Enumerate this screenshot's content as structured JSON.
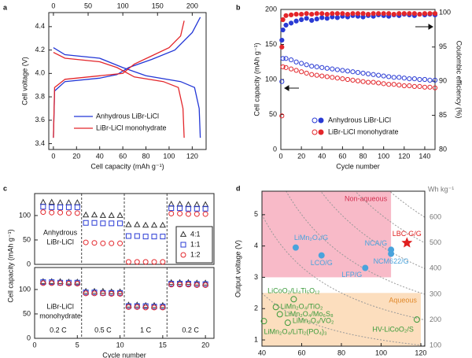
{
  "chart_data": [
    {
      "panel": "a",
      "type": "line",
      "xlabel": "Cell capacity (mAh g⁻¹)",
      "ylabel": "Cell voltage (V)",
      "xlim": [
        -4,
        132
      ],
      "xticks": [
        0,
        20,
        40,
        60,
        80,
        100,
        120
      ],
      "x2lim": [
        -6.7,
        220
      ],
      "x2ticks": [
        0,
        50,
        100,
        150,
        200
      ],
      "ylim": [
        3.35,
        4.52
      ],
      "yticks": [
        3.4,
        3.6,
        3.8,
        {
          "value": 4,
          "label": "4.0"
        },
        4.2,
        4.4
      ],
      "legend": "lower right",
      "series": [
        {
          "name": "Anhydrous LiBr-LiCl",
          "color": "#2236d6",
          "x": [
            0,
            1,
            10,
            40,
            55,
            65,
            85,
            105,
            120,
            127,
            null,
            0,
            10,
            40,
            60,
            80,
            110,
            122,
            126,
            127
          ],
          "values": [
            3.45,
            3.85,
            3.93,
            3.96,
            3.99,
            4.05,
            4.12,
            4.2,
            4.35,
            4.48,
            null,
            4.22,
            4.16,
            4.13,
            4.05,
            3.98,
            3.93,
            3.88,
            3.7,
            3.45
          ]
        },
        {
          "name": "LiBr-LiCl monohydrate",
          "color": "#e3262b",
          "x": [
            0,
            1,
            10,
            40,
            60,
            70,
            85,
            100,
            110,
            113,
            null,
            0,
            10,
            40,
            55,
            70,
            95,
            108,
            112,
            113
          ],
          "values": [
            3.45,
            3.88,
            3.95,
            3.98,
            4.0,
            4.08,
            4.15,
            4.22,
            4.32,
            4.45,
            null,
            4.18,
            4.13,
            4.1,
            4.05,
            3.97,
            3.93,
            3.88,
            3.7,
            3.45
          ]
        }
      ]
    },
    {
      "panel": "b",
      "type": "scatter",
      "xlabel": "Cycle number",
      "ylabel": "Cell capacity (mAh g⁻¹)",
      "y2label": "Coulombic efficiency (%)",
      "xlim": [
        0,
        150
      ],
      "xticks": [
        0,
        20,
        40,
        60,
        80,
        100,
        120,
        140
      ],
      "ylim": [
        0,
        200
      ],
      "yticks": [
        0,
        50,
        100,
        150,
        200
      ],
      "y2lim": [
        80,
        100.5
      ],
      "y2ticks": [
        80,
        85,
        90,
        95,
        100
      ],
      "legend": "lower right",
      "x": [
        1,
        2,
        5,
        10,
        15,
        20,
        25,
        30,
        35,
        40,
        45,
        50,
        55,
        60,
        65,
        70,
        75,
        80,
        85,
        90,
        95,
        100,
        105,
        110,
        115,
        120,
        125,
        130,
        135,
        140,
        145,
        150
      ],
      "series": [
        {
          "name": "Anhydrous LiBr-LiCl",
          "color": "#2a3bd4",
          "marker": "circle",
          "filled": false,
          "values": [
            97,
            130,
            130,
            128,
            125,
            123,
            121,
            119,
            118,
            117,
            116,
            115,
            114,
            113,
            112,
            111,
            110,
            109,
            108,
            107,
            106,
            105,
            104,
            103,
            103,
            102,
            101,
            101,
            100,
            100,
            99,
            99
          ]
        },
        {
          "name": "LiBr-LiCl monohydrate",
          "color": "#e3262b",
          "marker": "circle",
          "filled": false,
          "values": [
            48,
            118,
            117,
            115,
            113,
            111,
            109,
            107,
            106,
            105,
            104,
            103,
            102,
            101,
            100,
            99,
            98,
            97,
            96,
            96,
            95,
            94,
            93,
            93,
            92,
            91,
            91,
            90,
            90,
            89,
            89,
            88
          ]
        },
        {
          "color": "#2a3bd4",
          "marker": "circle",
          "filled": true,
          "axis": "y2",
          "values": [
            96,
            97.5,
            98.2,
            98.5,
            98.8,
            99,
            99.2,
            98.9,
            99.1,
            99.3,
            99.2,
            99.4,
            99.3,
            99.5,
            99.4,
            99.6,
            99.5,
            99.4,
            99.6,
            99.5,
            99.7,
            99.6,
            99.5,
            99.7,
            99.6,
            99.8,
            99.7,
            99.6,
            99.8,
            99.7,
            99.8,
            99.7
          ]
        },
        {
          "color": "#e3262b",
          "marker": "circle",
          "filled": true,
          "axis": "y2",
          "values": [
            95,
            99,
            99.6,
            99.7,
            99.8,
            99.8,
            99.9,
            99.8,
            99.9,
            99.9,
            99.8,
            99.9,
            99.9,
            99.9,
            99.8,
            99.9,
            99.9,
            99.9,
            99.8,
            99.9,
            99.9,
            99.9,
            99.9,
            99.8,
            99.9,
            99.9,
            99.9,
            99.9,
            99.8,
            99.9,
            99.9,
            99.9
          ]
        }
      ]
    },
    {
      "panel": "c",
      "type": "scatter",
      "ylabel": "Cell capacity (mAh g⁻¹)",
      "xlim": [
        0,
        21
      ],
      "ylim": [
        0,
        145
      ],
      "yticks": [
        0,
        50,
        100
      ],
      "dividers": [
        5.5,
        10.5,
        15.5
      ],
      "annotation": [
        "Anhydrous",
        "LiBr-LiCl"
      ],
      "legend": "lower right",
      "x": [
        1,
        2,
        3,
        4,
        5,
        6,
        7,
        8,
        9,
        10,
        11,
        12,
        13,
        14,
        15,
        16,
        17,
        18,
        19,
        20
      ],
      "series": [
        {
          "name": "4:1",
          "color": "#333333",
          "marker": "triangle",
          "filled": false,
          "values": [
            127,
            127,
            126,
            126,
            126,
            101,
            101,
            100,
            100,
            100,
            81,
            81,
            80,
            80,
            80,
            123,
            123,
            122,
            122,
            122
          ]
        },
        {
          "name": "1:1",
          "color": "#2a3bd4",
          "marker": "square",
          "filled": false,
          "values": [
            118,
            117,
            117,
            117,
            117,
            85,
            85,
            84,
            84,
            84,
            58,
            58,
            57,
            57,
            57,
            115,
            115,
            114,
            114,
            114
          ]
        },
        {
          "name": "1:2",
          "color": "#e3262b",
          "marker": "circle",
          "filled": false,
          "values": [
            107,
            106,
            106,
            105,
            105,
            45,
            44,
            43,
            43,
            43,
            5,
            5,
            5,
            5,
            5,
            104,
            104,
            103,
            103,
            103
          ]
        }
      ]
    },
    {
      "type": "scatter",
      "xlabel": "Cycle number",
      "xlim": [
        0,
        21
      ],
      "xticks": [
        0,
        5,
        10,
        15,
        20
      ],
      "ylim": [
        0,
        145
      ],
      "yticks": [
        0,
        50,
        100
      ],
      "dividers": [
        5.5,
        10.5,
        15.5
      ],
      "annotation": [
        "LiBr-LiCl",
        "monohydrate"
      ],
      "rate_labels": [
        "0.2 C",
        "0.5 C",
        "1 C",
        "0.2 C"
      ],
      "x": [
        1,
        2,
        3,
        4,
        5,
        6,
        7,
        8,
        9,
        10,
        11,
        12,
        13,
        14,
        15,
        16,
        17,
        18,
        19,
        20
      ],
      "series": [
        {
          "color": "#333333",
          "marker": "triangle",
          "filled": false,
          "values": [
            116,
            116,
            116,
            115,
            115,
            96,
            96,
            96,
            95,
            95,
            68,
            68,
            67,
            67,
            67,
            114,
            114,
            114,
            113,
            113
          ]
        },
        {
          "color": "#2a3bd4",
          "marker": "square",
          "filled": false,
          "values": [
            115,
            115,
            114,
            114,
            114,
            94,
            94,
            93,
            93,
            93,
            66,
            66,
            66,
            65,
            65,
            112,
            112,
            112,
            111,
            111
          ]
        },
        {
          "color": "#e3262b",
          "marker": "circle",
          "filled": false,
          "values": [
            113,
            113,
            113,
            112,
            112,
            92,
            92,
            92,
            91,
            91,
            64,
            64,
            63,
            63,
            63,
            110,
            110,
            110,
            109,
            109
          ]
        }
      ]
    },
    {
      "panel": "d",
      "type": "scatter",
      "xlabel": "Total electrode capacity (mAh g⁻¹)",
      "ylabel": "Output voltage (V)",
      "xlim": [
        40,
        122
      ],
      "xticks": [
        40,
        60,
        80,
        100,
        120
      ],
      "ylim": [
        0.8,
        5.75
      ],
      "yticks": [
        1,
        2,
        3,
        4,
        5
      ],
      "regions": [
        {
          "label": "Non-aqueous",
          "color": "#f5a3b5",
          "label_color": "#d12f4f",
          "xlim": [
            40,
            105
          ],
          "ylim": [
            3,
            5.75
          ]
        },
        {
          "label": "Aqueous",
          "color": "#fbd3a8",
          "label_color": "#e0882a",
          "xlim": [
            40,
            120
          ],
          "ylim": [
            0.8,
            2.5
          ]
        }
      ],
      "contours": {
        "label": "Wh kg⁻¹",
        "values": [
          100,
          200,
          300,
          400,
          500,
          600
        ]
      },
      "series": [
        {
          "color": "#4aa3dc",
          "marker": "circle",
          "filled": true,
          "labels": [
            "LiMn₂O₄/G",
            "NCA/G",
            "LCO/G",
            "NCM622/G",
            "LFP/G"
          ],
          "x": [
            57,
            105,
            70,
            105,
            92
          ],
          "values": [
            3.95,
            3.88,
            3.7,
            3.75,
            3.3
          ]
        },
        {
          "color": "#3a9a3a",
          "marker": "circle",
          "filled": false,
          "labels": [
            "LiCoO₂/Li₄Ti₅O₁₂",
            "LiMn₂O₄/TiO₂",
            "LiMn₂O₄/Mo₆S₈",
            "LiMn₂O₄/VO₂",
            "LiMn₂O₄/LiTi₂(PO₄)₃",
            "HV-LiCoO₂/S"
          ],
          "x": [
            56,
            47,
            49,
            53,
            41,
            118
          ],
          "values": [
            2.3,
            2.05,
            1.82,
            1.55,
            1.6,
            1.65
          ]
        },
        {
          "color": "#e02020",
          "marker": "star",
          "filled": true,
          "labels": [
            "LBC-G/G"
          ],
          "x": [
            113
          ],
          "values": [
            4.1
          ]
        }
      ]
    }
  ]
}
